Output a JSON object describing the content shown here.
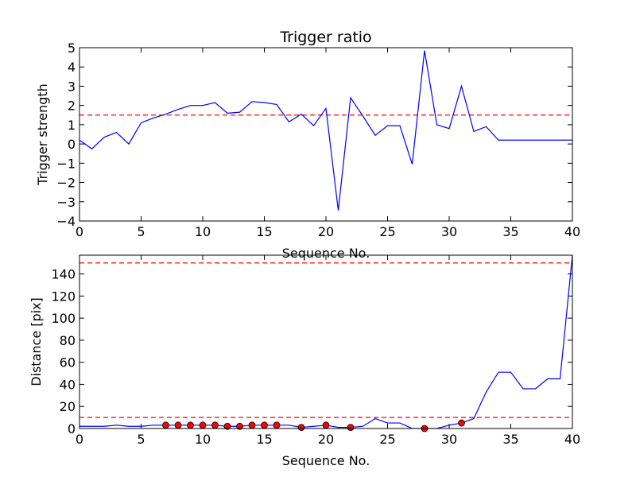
{
  "chart_data": [
    {
      "type": "line",
      "title": "Trigger ratio",
      "xlabel": "Sequence No.",
      "ylabel": "Trigger strength",
      "xlim": [
        0,
        40
      ],
      "ylim": [
        -4,
        5
      ],
      "xticks": [
        "0",
        "5",
        "10",
        "15",
        "20",
        "25",
        "30",
        "35",
        "40"
      ],
      "yticks": [
        "−4",
        "−3",
        "−2",
        "−1",
        "0",
        "1",
        "2",
        "3",
        "4",
        "5"
      ],
      "grid": false,
      "line_color": "#0000ff",
      "threshold_color": "#ff0000",
      "series": [
        {
          "x": [
            0,
            1,
            2,
            3,
            4,
            5,
            6,
            7,
            8,
            9,
            10,
            11,
            12,
            13,
            14,
            15,
            16,
            17,
            18,
            19,
            20,
            21,
            22,
            23,
            24,
            25,
            26,
            27,
            28,
            29,
            30,
            31,
            32,
            33,
            34,
            35,
            36,
            37,
            38,
            39,
            40
          ],
          "values": [
            0.2,
            -0.25,
            0.35,
            0.6,
            0.0,
            1.1,
            1.35,
            1.55,
            1.8,
            2.0,
            2.0,
            2.15,
            1.6,
            1.65,
            2.2,
            2.15,
            2.05,
            1.15,
            1.55,
            0.95,
            1.85,
            -3.45,
            2.4,
            1.45,
            0.45,
            0.95,
            0.95,
            -1.05,
            4.85,
            1.0,
            0.8,
            3.0,
            0.65,
            0.9,
            0.2,
            0.2,
            0.2,
            0.2,
            0.2,
            0.2,
            0.2
          ]
        }
      ],
      "threshold": 1.5
    },
    {
      "type": "line",
      "title": "",
      "xlabel": "Sequence No.",
      "ylabel": "Distance [pix]",
      "xlim": [
        0,
        40
      ],
      "ylim": [
        0,
        157
      ],
      "xticks": [
        "0",
        "5",
        "10",
        "15",
        "20",
        "25",
        "30",
        "35",
        "40"
      ],
      "yticks": [
        "0",
        "20",
        "40",
        "60",
        "80",
        "100",
        "120",
        "140"
      ],
      "grid": false,
      "line_color": "#0000ff",
      "threshold_color": "#ff0000",
      "marker_color": "#ff0000",
      "series": [
        {
          "x": [
            0,
            1,
            2,
            3,
            4,
            5,
            6,
            7,
            8,
            9,
            10,
            11,
            12,
            13,
            14,
            15,
            16,
            17,
            18,
            19,
            20,
            21,
            22,
            23,
            24,
            25,
            26,
            27,
            28,
            29,
            30,
            31,
            32,
            33,
            34,
            35,
            36,
            37,
            38,
            39,
            40
          ],
          "values": [
            2,
            2,
            2,
            3,
            2,
            2,
            3,
            3,
            3,
            3,
            3,
            3,
            2,
            2,
            3,
            3,
            3,
            3,
            1,
            2,
            3,
            1,
            1,
            2,
            9,
            5,
            5,
            0,
            0,
            0,
            3,
            5,
            9,
            33,
            51,
            51,
            36,
            36,
            45,
            45,
            157
          ]
        }
      ],
      "thresholds": [
        10,
        150
      ],
      "markers": {
        "x": [
          7,
          8,
          9,
          10,
          11,
          12,
          13,
          14,
          15,
          16,
          18,
          20,
          22,
          28,
          31
        ],
        "values": [
          3,
          3,
          3,
          3,
          3,
          2,
          2,
          3,
          3,
          3,
          1,
          3,
          1,
          0,
          5
        ]
      }
    }
  ]
}
